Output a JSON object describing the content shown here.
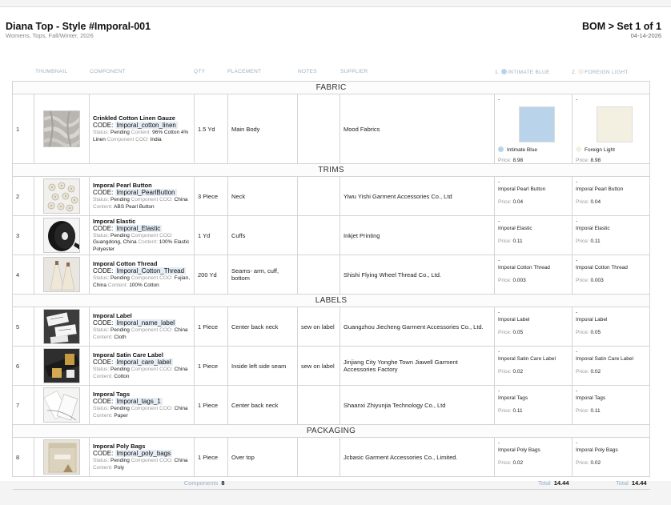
{
  "header": {
    "title": "Diana Top - Style #Imporal-001",
    "subtitle": "Womens, Tops, Fall/Winter, 2026",
    "bom": "BOM > Set 1 of 1",
    "date": "04-14-2026"
  },
  "columns": {
    "thumbnail": "THUMBNAIL",
    "component": "COMPONENT",
    "qty": "QTY",
    "placement": "PLACEMENT",
    "notes": "NOTES",
    "supplier": "SUPPLIER",
    "cw1_num": "1.",
    "cw1": "INTIMATE BLUE",
    "cw2_num": "2.",
    "cw2": "FOREIGN LIGHT"
  },
  "colors": {
    "intimate_blue": "#b9d4ea",
    "foreign_light": "#f3f0e2"
  },
  "labels": {
    "code": "CODE:",
    "status": "Status:",
    "content": "Content:",
    "coo": "Component COO:",
    "price": "Price:",
    "dash": "-"
  },
  "sections": {
    "fabric": "FABRIC",
    "trims": "TRIMS",
    "labels": "LABELS",
    "packaging": "PACKAGING"
  },
  "rows": [
    {
      "index": "1",
      "name": "Crinkled Cotton Linen Gauze",
      "code": "Imporal_cotton_linen",
      "status": "Pending",
      "content": "96% Cotton 4% Linen",
      "coo": "India",
      "qty": "1.5 Yd",
      "placement": "Main Body",
      "notes": "",
      "supplier": "Mood Fabrics",
      "cw1_name": "Intimate Blue",
      "cw1_price": "8.98",
      "cw2_name": "Foreign Light",
      "cw2_price": "8.98",
      "thumb_icon": "fabric-swatch"
    },
    {
      "index": "2",
      "name": "Imporal Pearl Button",
      "code": "Imporal_PearlButton",
      "status": "Pending",
      "coo": "China",
      "content": "ABS Pearl Button",
      "qty": "3 Piece",
      "placement": "Neck",
      "notes": "",
      "supplier": "Yiwu Yishi Garment Accessories Co., Ltd",
      "cw1_name": "Imporal Pearl Button",
      "cw1_price": "0.04",
      "cw2_name": "Imporal Pearl Button",
      "cw2_price": "0.04",
      "thumb_icon": "pearl-buttons"
    },
    {
      "index": "3",
      "name": "Imporal Elastic",
      "code": "Imporal_Elastic",
      "status": "Pending",
      "coo": "Guangdong, China",
      "content": "100% Elastic Polyester",
      "qty": "1 Yd",
      "placement": "Cuffs",
      "notes": "",
      "supplier": "Inkjet Printing",
      "cw1_name": "Imporal Elastic",
      "cw1_price": "0.11",
      "cw2_name": "Imporal Elastic",
      "cw2_price": "0.11",
      "thumb_icon": "elastic-roll"
    },
    {
      "index": "4",
      "name": "Imporal Cotton Thread",
      "code": "Imporal_Cotton_Thread",
      "status": "Pending",
      "coo": "Fujian, China",
      "content": "100% Cotton",
      "qty": "200 Yd",
      "placement": "Seams- arm, cuff, bottom",
      "notes": "",
      "supplier": "Shishi Flying Wheel Thread Co., Ltd.",
      "cw1_name": "Imporal Cotton Thread",
      "cw1_price": "0.003",
      "cw2_name": "Imporal Cotton Thread",
      "cw2_price": "0.003",
      "thumb_icon": "thread-spools"
    },
    {
      "index": "5",
      "name": "Imporal Label",
      "code": "Imporal_name_label",
      "status": "Pending",
      "coo": "China",
      "content": "Cloth",
      "qty": "1 Piece",
      "placement": "Center back neck",
      "notes": "sew on label",
      "supplier": "Guangzhou Jiecheng Garment Accessories Co., Ltd.",
      "cw1_name": "Imporal Label",
      "cw1_price": "0.05",
      "cw2_name": "Imporal Label",
      "cw2_price": "0.05",
      "thumb_icon": "woven-label"
    },
    {
      "index": "6",
      "name": "Imporal Satin Care Label",
      "code": "Imporal_care_label",
      "status": "Pending",
      "coo": "China",
      "content": "Cotton",
      "qty": "1 Piece",
      "placement": "Inside left side seam",
      "notes": "sew on label",
      "supplier": "Jinjiang City Yonghe Town Jiawell Garment Accessories Factory",
      "cw1_name": "Imporal Satin Care Label",
      "cw1_price": "0.02",
      "cw2_name": "Imporal Satin Care Label",
      "cw2_price": "0.02",
      "thumb_icon": "care-label"
    },
    {
      "index": "7",
      "name": "Imporal Tags",
      "code": "Imporal_tags_1",
      "status": "Pending",
      "coo": "China",
      "content": "Paper",
      "qty": "1 Piece",
      "placement": "Center back neck",
      "notes": "",
      "supplier": "Shaanxi Zhiyunjia Technology Co., Ltd",
      "cw1_name": "Imporal Tags",
      "cw1_price": "0.11",
      "cw2_name": "Imporal Tags",
      "cw2_price": "0.11",
      "thumb_icon": "hang-tags"
    },
    {
      "index": "8",
      "name": "Imporal Poly Bags",
      "code": "Imporal_poly_bags",
      "status": "Pending",
      "coo": "China",
      "content": "Poly",
      "qty": "1 Piece",
      "placement": "Over top",
      "notes": "",
      "supplier": "Jcbasic Garment Accessories Co., Limited.",
      "cw1_name": "Imporal Poly Bags",
      "cw1_price": "0.02",
      "cw2_name": "Imporal Poly Bags",
      "cw2_price": "0.02",
      "thumb_icon": "poly-bag"
    }
  ],
  "footer": {
    "components_label": "Components",
    "components_value": "8",
    "total_label": "Total",
    "total1": "14.44",
    "total2": "14.44"
  }
}
